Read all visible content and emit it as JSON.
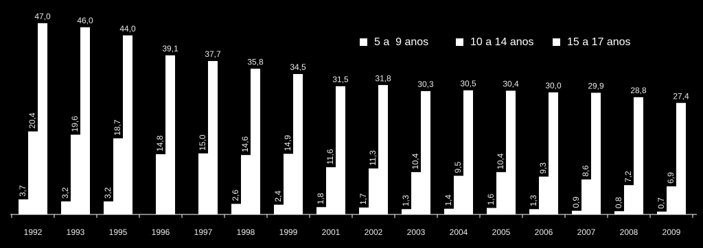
{
  "chart_data": {
    "type": "bar",
    "categories": [
      "1992",
      "1993",
      "1995",
      "1996",
      "1997",
      "1998",
      "1999",
      "2001",
      "2002",
      "2003",
      "2004",
      "2005",
      "2006",
      "2007",
      "2008",
      "2009"
    ],
    "series": [
      {
        "name": "5 a  9 anos",
        "color": "#ffffff",
        "values": [
          3.7,
          3.2,
          3.2,
          null,
          null,
          2.6,
          2.4,
          1.8,
          1.7,
          1.3,
          1.4,
          1.6,
          1.3,
          0.9,
          0.8,
          0.7
        ],
        "value_labels": [
          "3,7",
          "3,2",
          "3,2",
          null,
          null,
          "2,6",
          "2,4",
          "1,8",
          "1,7",
          "1,3",
          "1,4",
          "1,6",
          "1,3",
          "0,9",
          "0,8",
          "0,7"
        ]
      },
      {
        "name": "10 a 14 anos",
        "color": "#ffffff",
        "values": [
          20.4,
          19.6,
          18.7,
          14.8,
          15.0,
          14.6,
          14.9,
          11.6,
          11.3,
          10.4,
          9.5,
          10.4,
          9.3,
          8.6,
          7.2,
          6.9
        ],
        "value_labels": [
          "20,4",
          "19,6",
          "18,7",
          "14,8",
          "15,0",
          "14,6",
          "14,9",
          "11,6",
          "11,3",
          "10,4",
          "9,5",
          "10,4",
          "9,3",
          "8,6",
          "7,2",
          "6,9"
        ]
      },
      {
        "name": "15 a 17 anos",
        "color": "#ffffff",
        "values": [
          47.0,
          46.0,
          44.0,
          39.1,
          37.7,
          35.8,
          34.5,
          31.5,
          31.8,
          30.3,
          30.5,
          30.4,
          30.0,
          29.9,
          28.8,
          27.4
        ],
        "value_labels": [
          "47,0",
          "46,0",
          "44,0",
          "39,1",
          "37,7",
          "35,8",
          "34,5",
          "31,5",
          "31,8",
          "30,3",
          "30,5",
          "30,4",
          "30,0",
          "29,9",
          "28,8",
          "27,4"
        ]
      }
    ],
    "ylim": [
      0,
      50
    ],
    "legend": "top-right"
  }
}
